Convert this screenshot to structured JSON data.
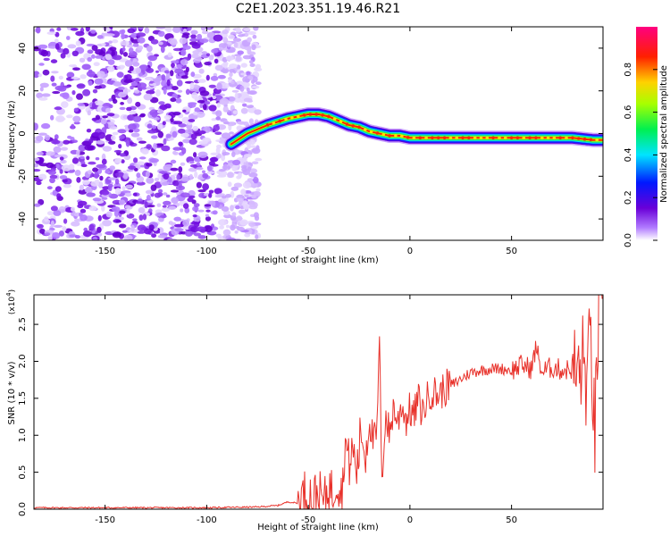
{
  "title": "C2E1.2023.351.19.46.R21",
  "chart_data": [
    {
      "type": "heatmap",
      "xlabel": "Height of straight line (km)",
      "ylabel": "Frequency (Hz)",
      "xlim": [
        -185,
        95
      ],
      "ylim": [
        -50,
        50
      ],
      "xticks": [
        -150,
        -100,
        -50,
        0,
        50
      ],
      "yticks": [
        -40,
        -20,
        0,
        20,
        40
      ],
      "colorbar": {
        "label": "Normalized spectral amplitude",
        "range": [
          0,
          1
        ],
        "ticks": [
          0.0,
          0.2,
          0.4,
          0.6,
          0.8
        ],
        "colormap": "rainbow (white-violet-blue-cyan-green-yellow-red-magenta)"
      },
      "noise_region": {
        "x_from": -185,
        "x_to": -78
      },
      "signal_track": {
        "x": [
          -88,
          -80,
          -70,
          -60,
          -50,
          -45,
          -40,
          -35,
          -30,
          -25,
          -20,
          -15,
          -10,
          -5,
          0,
          10,
          20,
          30,
          40,
          50,
          60,
          70,
          80,
          90,
          95
        ],
        "y": [
          -5,
          0,
          4,
          7,
          9,
          9,
          8,
          6,
          4,
          3,
          1,
          0,
          -1,
          -1,
          -2,
          -2,
          -2,
          -2,
          -2,
          -2,
          -2,
          -2,
          -2,
          -3,
          -3
        ]
      }
    },
    {
      "type": "line",
      "xlabel": "Height of straight line (km)",
      "ylabel": "SNR (10 * v/v)",
      "yscale_label": "(x10",
      "yscale_exp": "4",
      "yscale_close": ")",
      "xlim": [
        -185,
        95
      ],
      "ylim": [
        0,
        2.9
      ],
      "xticks": [
        -150,
        -100,
        -50,
        0,
        50
      ],
      "yticks": [
        "0.0",
        "0.5",
        "1.0",
        "1.5",
        "2.0",
        "2.5"
      ],
      "line_color": "#e8312a",
      "series": [
        {
          "x": [
            -185,
            -150,
            -100,
            -75,
            -65,
            -60,
            -55,
            -52,
            -50,
            -48,
            -45,
            -42,
            -40,
            -38,
            -36,
            -34,
            -33,
            -32,
            -30,
            -28,
            -26,
            -24,
            -22,
            -20,
            -18,
            -16,
            -15,
            -14,
            -12,
            -10,
            -8,
            -6,
            -4,
            -2,
            0,
            2,
            4,
            6,
            8,
            10,
            14,
            18,
            22,
            26,
            30,
            35,
            40,
            45,
            50,
            55,
            60,
            62,
            65,
            68,
            70,
            75,
            80,
            83,
            85,
            87,
            89,
            91,
            93,
            95
          ],
          "y": [
            0.02,
            0.02,
            0.02,
            0.03,
            0.05,
            0.1,
            0.08,
            0.2,
            0.24,
            0.15,
            0.2,
            0.08,
            0.35,
            0.2,
            0.45,
            0.25,
            0.3,
            0.95,
            0.6,
            0.8,
            0.5,
            1.1,
            0.7,
            1.25,
            0.9,
            1.05,
            2.42,
            0.3,
            1.3,
            1.0,
            1.4,
            1.15,
            1.45,
            1.2,
            1.35,
            1.25,
            1.5,
            1.3,
            1.45,
            1.6,
            1.55,
            1.65,
            1.7,
            1.78,
            1.85,
            1.88,
            1.9,
            1.9,
            1.88,
            1.95,
            1.9,
            2.2,
            1.85,
            1.9,
            1.92,
            1.88,
            1.9,
            1.8,
            2.0,
            1.7,
            2.3,
            0.9,
            2.8,
            2.1
          ]
        }
      ]
    }
  ]
}
